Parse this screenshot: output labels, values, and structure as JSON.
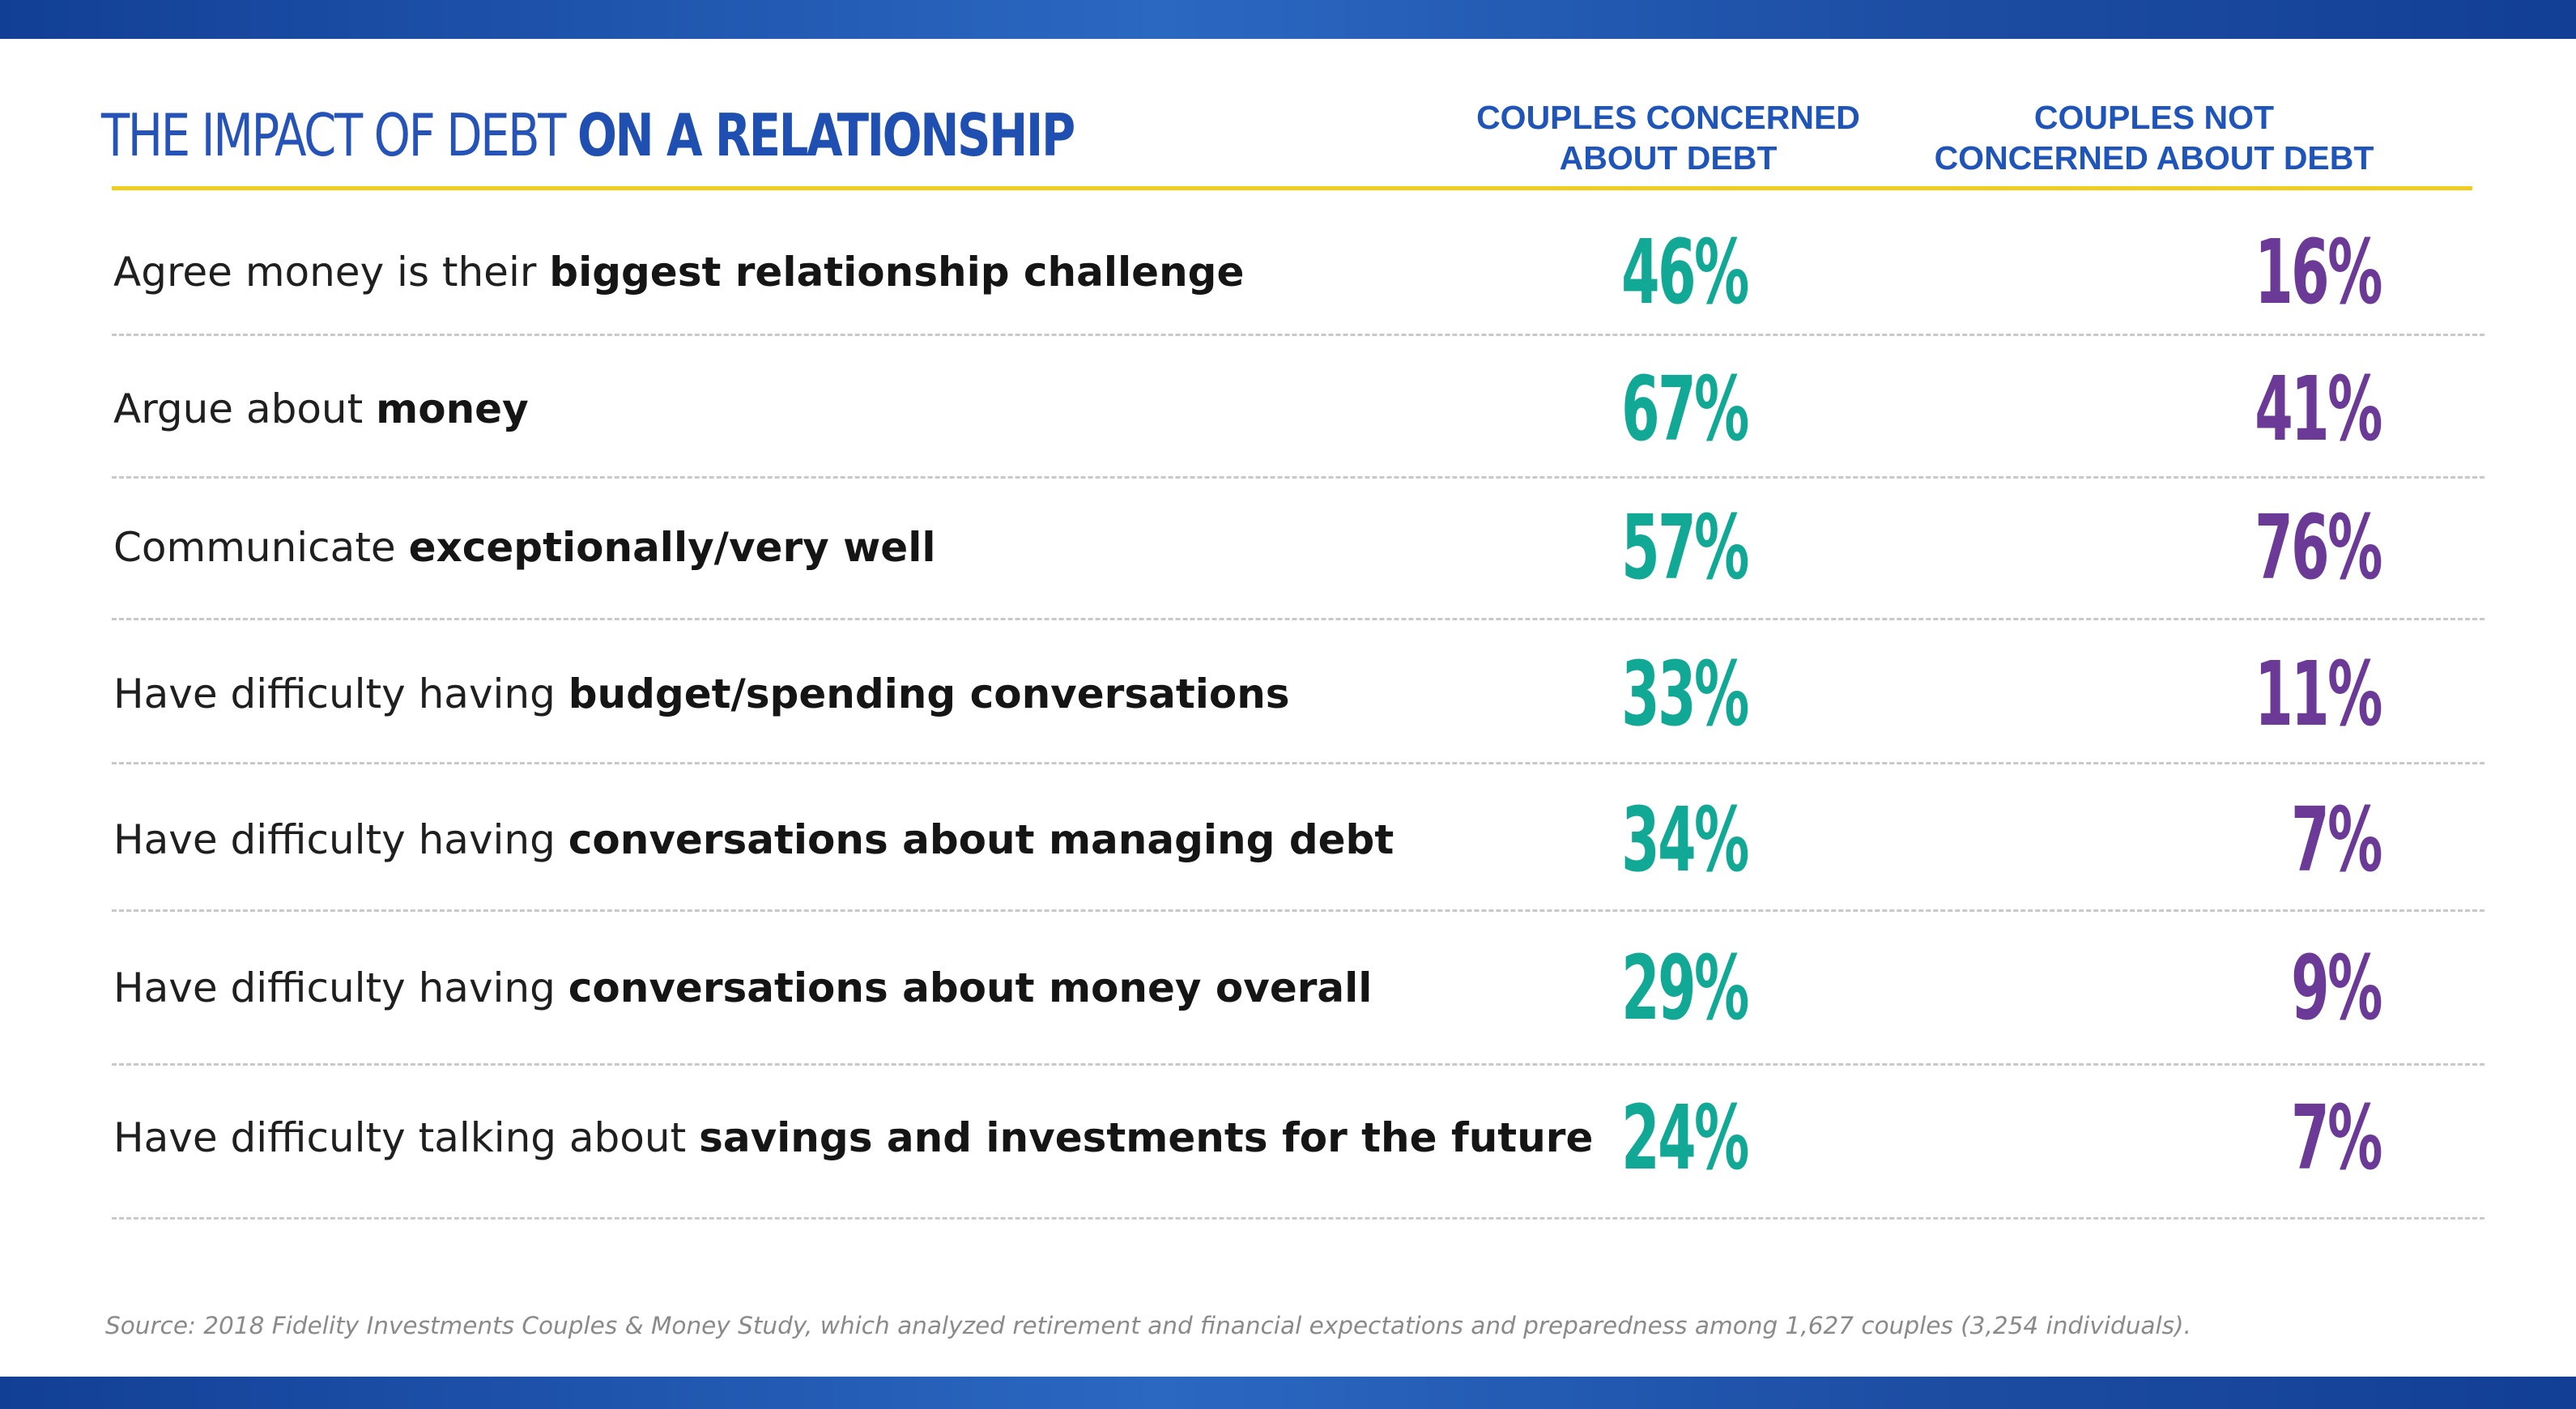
{
  "title": {
    "light": "THE IMPACT OF DEBT ",
    "bold": "ON A RELATIONSHIP"
  },
  "columns": [
    {
      "line1": "COUPLES CONCERNED",
      "line2": "ABOUT DEBT"
    },
    {
      "line1": "COUPLES NOT",
      "line2": "CONCERNED ABOUT DEBT"
    }
  ],
  "rows": [
    {
      "plain": "Agree money is their ",
      "bold": "biggest relationship challenge",
      "concerned": "46%",
      "not_concerned": "16%"
    },
    {
      "plain": "Argue about ",
      "bold": "money",
      "concerned": "67%",
      "not_concerned": "41%"
    },
    {
      "plain": "Communicate ",
      "bold": "exceptionally/very well",
      "concerned": "57%",
      "not_concerned": "76%"
    },
    {
      "plain": "Have difficulty having ",
      "bold": "budget/spending conversations",
      "concerned": "33%",
      "not_concerned": "11%"
    },
    {
      "plain": "Have difficulty having ",
      "bold": "conversations about managing debt",
      "concerned": "34%",
      "not_concerned": "7%"
    },
    {
      "plain": "Have difficulty having ",
      "bold": "conversations about money overall",
      "concerned": "29%",
      "not_concerned": "9%"
    },
    {
      "plain": "Have difficulty talking about ",
      "bold": "savings and investments for the future",
      "concerned": "24%",
      "not_concerned": "7%"
    }
  ],
  "source": "Source: 2018 Fidelity Investments Couples & Money Study, which analyzed retirement and financial expectations and preparedness among 1,627 couples (3,254 individuals).",
  "colors": {
    "band": "#1f4fa8",
    "title": "#2653b8",
    "header": "#1f55b8",
    "rule": "#f2cc1b",
    "concerned": "#12a896",
    "not_concerned": "#6a3a96"
  },
  "chart_data": {
    "type": "table",
    "title": "THE IMPACT OF DEBT ON A RELATIONSHIP",
    "columns": [
      "COUPLES CONCERNED ABOUT DEBT",
      "COUPLES NOT CONCERNED ABOUT DEBT"
    ],
    "categories": [
      "Agree money is their biggest relationship challenge",
      "Argue about money",
      "Communicate exceptionally/very well",
      "Have difficulty having budget/spending conversations",
      "Have difficulty having conversations about managing debt",
      "Have difficulty having conversations about money overall",
      "Have difficulty talking about savings and investments for the future"
    ],
    "series": [
      {
        "name": "COUPLES CONCERNED ABOUT DEBT",
        "values": [
          46,
          67,
          57,
          33,
          34,
          29,
          24
        ]
      },
      {
        "name": "COUPLES NOT CONCERNED ABOUT DEBT",
        "values": [
          16,
          41,
          76,
          11,
          7,
          9,
          7
        ]
      }
    ],
    "unit": "%"
  }
}
